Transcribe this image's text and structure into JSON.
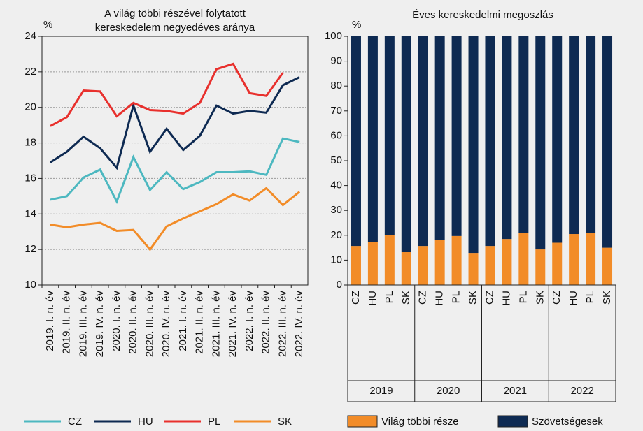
{
  "chart_data": [
    {
      "type": "line",
      "title": [
        "A világ többi részével folytatott",
        "kereskedelem negyedéves aránya"
      ],
      "y_label": "%",
      "categories": [
        "2019. I. n. év",
        "2019. II. n. év",
        "2019. III. n. év",
        "2019. IV. n. év",
        "2020. I. n. év",
        "2020. II. n. év",
        "2020. III. n. év",
        "2020. IV. n. év",
        "2021. I. n. év",
        "2021. II. n. év",
        "2021. III. n. év",
        "2021. IV. n. év",
        "2022. I. n. év",
        "2022. II. n. év",
        "2022. III. n. év",
        "2022. IV. n. év"
      ],
      "series": [
        {
          "name": "CZ",
          "color": "#4db8c0",
          "values": [
            14.8,
            15.0,
            16.05,
            16.5,
            14.7,
            17.2,
            15.35,
            16.35,
            15.4,
            15.8,
            16.35,
            16.35,
            16.4,
            16.2,
            18.25,
            18.05
          ]
        },
        {
          "name": "HU",
          "color": "#0e2a52",
          "values": [
            16.9,
            17.5,
            18.35,
            17.7,
            16.6,
            20.1,
            17.5,
            18.8,
            17.6,
            18.4,
            20.1,
            19.65,
            19.8,
            19.7,
            21.25,
            21.7
          ]
        },
        {
          "name": "PL",
          "color": "#e8302d",
          "values": [
            18.95,
            19.45,
            20.95,
            20.9,
            19.5,
            20.25,
            19.85,
            19.8,
            19.65,
            20.25,
            22.15,
            22.45,
            20.8,
            20.65,
            21.95,
            null
          ]
        },
        {
          "name": "SK",
          "color": "#f28c28",
          "values": [
            13.4,
            13.25,
            13.4,
            13.5,
            13.05,
            13.1,
            12.0,
            13.3,
            13.75,
            14.15,
            14.55,
            15.1,
            14.75,
            15.45,
            14.5,
            15.25
          ]
        }
      ],
      "ylim": [
        10,
        24
      ],
      "yticks": [
        10,
        12,
        14,
        16,
        18,
        20,
        22,
        24
      ],
      "grid": true
    },
    {
      "type": "bar",
      "stacked": true,
      "title": "Éves kereskedelmi megoszlás",
      "y_label": "%",
      "categories": [
        "CZ",
        "HU",
        "PL",
        "SK",
        "CZ",
        "HU",
        "PL",
        "SK",
        "CZ",
        "HU",
        "PL",
        "SK",
        "CZ",
        "HU",
        "PL",
        "SK"
      ],
      "groups": [
        "2019",
        "2020",
        "2021",
        "2022"
      ],
      "series": [
        {
          "name": "Világ többi része",
          "color": "#f28c28",
          "values": [
            15.7,
            17.4,
            20,
            13.2,
            15.7,
            18,
            19.7,
            12.9,
            15.7,
            18.5,
            21,
            14.3,
            17,
            20.5,
            21,
            15
          ]
        },
        {
          "name": "Szövetségesek",
          "color": "#0e2a52",
          "values": [
            84.3,
            82.6,
            80,
            86.8,
            84.3,
            82,
            80.3,
            87.1,
            84.3,
            81.5,
            79,
            85.7,
            83,
            79.5,
            79,
            85
          ]
        }
      ],
      "ylim": [
        0,
        100
      ],
      "yticks": [
        0,
        10,
        20,
        30,
        40,
        50,
        60,
        70,
        80,
        90,
        100
      ],
      "grid": false
    }
  ]
}
